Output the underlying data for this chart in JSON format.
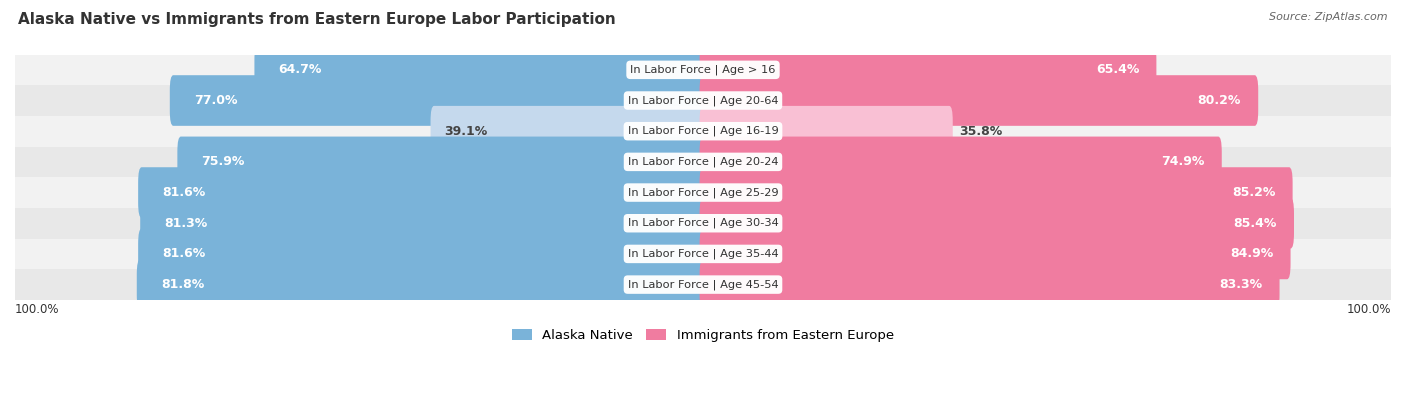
{
  "title": "Alaska Native vs Immigrants from Eastern Europe Labor Participation",
  "source": "Source: ZipAtlas.com",
  "categories": [
    "In Labor Force | Age > 16",
    "In Labor Force | Age 20-64",
    "In Labor Force | Age 16-19",
    "In Labor Force | Age 20-24",
    "In Labor Force | Age 25-29",
    "In Labor Force | Age 30-34",
    "In Labor Force | Age 35-44",
    "In Labor Force | Age 45-54"
  ],
  "alaska_values": [
    64.7,
    77.0,
    39.1,
    75.9,
    81.6,
    81.3,
    81.6,
    81.8
  ],
  "immigrant_values": [
    65.4,
    80.2,
    35.8,
    74.9,
    85.2,
    85.4,
    84.9,
    83.3
  ],
  "alaska_color": "#7ab3d9",
  "alaska_color_light": "#c5d9ed",
  "immigrant_color": "#f07ca0",
  "immigrant_color_light": "#f9c0d4",
  "row_bg_even": "#f2f2f2",
  "row_bg_odd": "#e8e8e8",
  "max_value": 100.0,
  "label_fontsize": 9.0,
  "title_fontsize": 11,
  "legend_alaska": "Alaska Native",
  "legend_immigrant": "Immigrants from Eastern Europe",
  "bottom_left_label": "100.0%",
  "bottom_right_label": "100.0%"
}
